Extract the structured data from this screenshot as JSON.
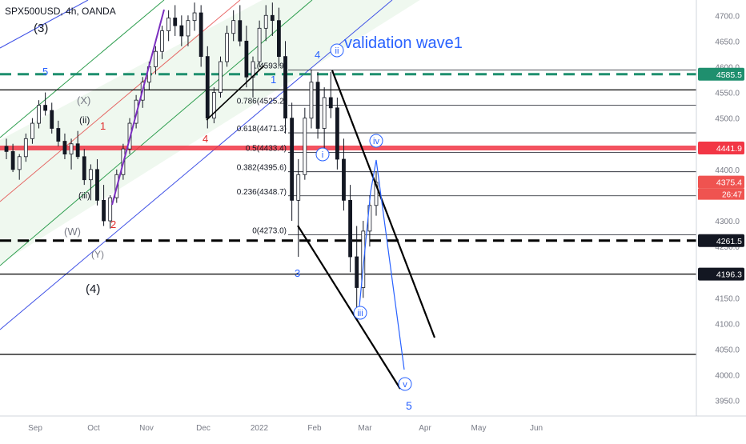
{
  "header": {
    "symbol_text": "SPX500USD, 4h, OANDA"
  },
  "colors": {
    "candle_up": "#26a69a",
    "candle_down": "#ef5350",
    "wick": "#131722",
    "channel_blue": "#3f51e6",
    "channel_green": "#2e9e4f",
    "channel_fill": "#e9f6ea",
    "fib_line": "#131722",
    "target_blue": "#2962ff",
    "dashed_teal": "#1f8f6e",
    "red_band": "#f23645",
    "axis_text": "#787b86",
    "label_black": "#131722",
    "label_red": "#e12b2b"
  },
  "chart_data": {
    "type": "candlestick",
    "title": "SPX500USD, 4h, OANDA",
    "ylim": [
      3920,
      4730
    ],
    "y_ticks": [
      "4700.0",
      "4650.0",
      "4600.0",
      "4550.0",
      "4500.0",
      "4450.0",
      "4400.0",
      "4350.0",
      "4300.0",
      "4250.0",
      "4200.0",
      "4150.0",
      "4100.0",
      "4050.0",
      "4000.0",
      "3950.0"
    ],
    "x_ticks": [
      "Sep",
      "Oct",
      "Nov",
      "Dec",
      "2022",
      "Feb",
      "Mar",
      "Apr",
      "May",
      "Jun"
    ],
    "price_labels": [
      {
        "text": "4585.5",
        "value": 4585.5,
        "color": "#1f8f6e"
      },
      {
        "text": "4441.9",
        "value": 4441.9,
        "color": "#f23645"
      },
      {
        "text": "4375.4",
        "value": 4375.4,
        "color": "#ef5350",
        "extra": "26:47"
      },
      {
        "text": "4261.5",
        "value": 4261.5,
        "color": "#131722"
      },
      {
        "text": "4196.3",
        "value": 4196.3,
        "color": "#131722"
      }
    ],
    "horizontal_levels": [
      {
        "value": 4585.5,
        "style": "dashed-teal"
      },
      {
        "value": 4441.9,
        "style": "red-band"
      },
      {
        "value": 4261.5,
        "style": "dashed-black"
      },
      {
        "value": 4196.3,
        "style": "solid"
      },
      {
        "value": 4555,
        "style": "solid"
      },
      {
        "value": 4040,
        "style": "solid"
      }
    ],
    "fib_levels": [
      {
        "label": "1(4593.9)",
        "value": 4593.9
      },
      {
        "label": "0.786(4525.2)",
        "value": 4525.2
      },
      {
        "label": "0.618(4471.3)",
        "value": 4471.3
      },
      {
        "label": "0.5(4433.4)",
        "value": 4433.4
      },
      {
        "label": "0.382(4395.6)",
        "value": 4395.6
      },
      {
        "label": "0.236(4348.7)",
        "value": 4348.7
      },
      {
        "label": "0(4273.0)",
        "value": 4273.0
      }
    ],
    "annotations": [
      {
        "text": "validation wave1",
        "color": "#2962ff",
        "size": "big"
      },
      {
        "text": "(3)",
        "color": "#131722"
      },
      {
        "text": "(4)",
        "color": "#131722"
      },
      {
        "text": "(X)",
        "color": "#787b86"
      },
      {
        "text": "(W)",
        "color": "#787b86"
      },
      {
        "text": "(Y)",
        "color": "#787b86"
      },
      {
        "text": "(ii)",
        "color": "#131722"
      },
      {
        "text": "(iii)",
        "color": "#131722"
      },
      {
        "text": "1",
        "color": "#e12b2b"
      },
      {
        "text": "2",
        "color": "#e12b2b"
      },
      {
        "text": "4",
        "color": "#e12b2b"
      },
      {
        "text": "5",
        "color": "#2962ff"
      },
      {
        "text": "1",
        "color": "#2962ff"
      },
      {
        "text": "4",
        "color": "#2962ff"
      },
      {
        "text": "3",
        "color": "#2962ff"
      },
      {
        "text": "5",
        "color": "#2962ff"
      },
      {
        "text": "ii",
        "color": "#2962ff",
        "circled": true
      },
      {
        "text": "i",
        "color": "#2962ff",
        "circled": true
      },
      {
        "text": "iii",
        "color": "#2962ff",
        "circled": true
      },
      {
        "text": "iv",
        "color": "#2962ff",
        "circled": true
      },
      {
        "text": "v",
        "color": "#2962ff",
        "circled": true
      }
    ],
    "candles": [
      [
        4445,
        4460,
        4420,
        4435
      ],
      [
        4435,
        4450,
        4395,
        4400
      ],
      [
        4400,
        4430,
        4380,
        4425
      ],
      [
        4425,
        4470,
        4415,
        4460
      ],
      [
        4460,
        4500,
        4450,
        4490
      ],
      [
        4490,
        4535,
        4480,
        4525
      ],
      [
        4525,
        4550,
        4505,
        4515
      ],
      [
        4515,
        4530,
        4470,
        4480
      ],
      [
        4480,
        4495,
        4445,
        4455
      ],
      [
        4455,
        4470,
        4420,
        4430
      ],
      [
        4430,
        4460,
        4400,
        4450
      ],
      [
        4450,
        4475,
        4420,
        4425
      ],
      [
        4425,
        4440,
        4370,
        4380
      ],
      [
        4380,
        4410,
        4340,
        4400
      ],
      [
        4400,
        4420,
        4330,
        4340
      ],
      [
        4340,
        4370,
        4290,
        4300
      ],
      [
        4300,
        4350,
        4285,
        4345
      ],
      [
        4345,
        4400,
        4335,
        4390
      ],
      [
        4390,
        4450,
        4380,
        4440
      ],
      [
        4440,
        4500,
        4430,
        4490
      ],
      [
        4490,
        4545,
        4480,
        4535
      ],
      [
        4535,
        4580,
        4520,
        4570
      ],
      [
        4570,
        4610,
        4555,
        4600
      ],
      [
        4600,
        4640,
        4585,
        4630
      ],
      [
        4630,
        4680,
        4615,
        4670
      ],
      [
        4670,
        4710,
        4650,
        4695
      ],
      [
        4695,
        4720,
        4660,
        4680
      ],
      [
        4680,
        4700,
        4640,
        4660
      ],
      [
        4660,
        4700,
        4640,
        4690
      ],
      [
        4690,
        4725,
        4670,
        4705
      ],
      [
        4705,
        4720,
        4600,
        4620
      ],
      [
        4620,
        4640,
        4480,
        4500
      ],
      [
        4500,
        4560,
        4490,
        4550
      ],
      [
        4550,
        4620,
        4540,
        4610
      ],
      [
        4610,
        4680,
        4600,
        4665
      ],
      [
        4665,
        4710,
        4650,
        4690
      ],
      [
        4690,
        4720,
        4640,
        4650
      ],
      [
        4650,
        4680,
        4560,
        4580
      ],
      [
        4580,
        4620,
        4540,
        4610
      ],
      [
        4610,
        4690,
        4600,
        4675
      ],
      [
        4675,
        4720,
        4650,
        4700
      ],
      [
        4700,
        4725,
        4660,
        4690
      ],
      [
        4690,
        4715,
        4600,
        4620
      ],
      [
        4620,
        4650,
        4470,
        4500
      ],
      [
        4500,
        4530,
        4300,
        4340
      ],
      [
        4340,
        4420,
        4230,
        4390
      ],
      [
        4390,
        4520,
        4380,
        4500
      ],
      [
        4500,
        4595,
        4480,
        4570
      ],
      [
        4570,
        4590,
        4460,
        4480
      ],
      [
        4480,
        4560,
        4440,
        4540
      ],
      [
        4540,
        4590,
        4500,
        4520
      ],
      [
        4520,
        4540,
        4400,
        4420
      ],
      [
        4420,
        4460,
        4320,
        4340
      ],
      [
        4340,
        4370,
        4200,
        4230
      ],
      [
        4230,
        4290,
        4130,
        4170
      ],
      [
        4170,
        4300,
        4150,
        4280
      ],
      [
        4280,
        4350,
        4250,
        4330
      ],
      [
        4330,
        4395,
        4310,
        4375
      ]
    ]
  }
}
